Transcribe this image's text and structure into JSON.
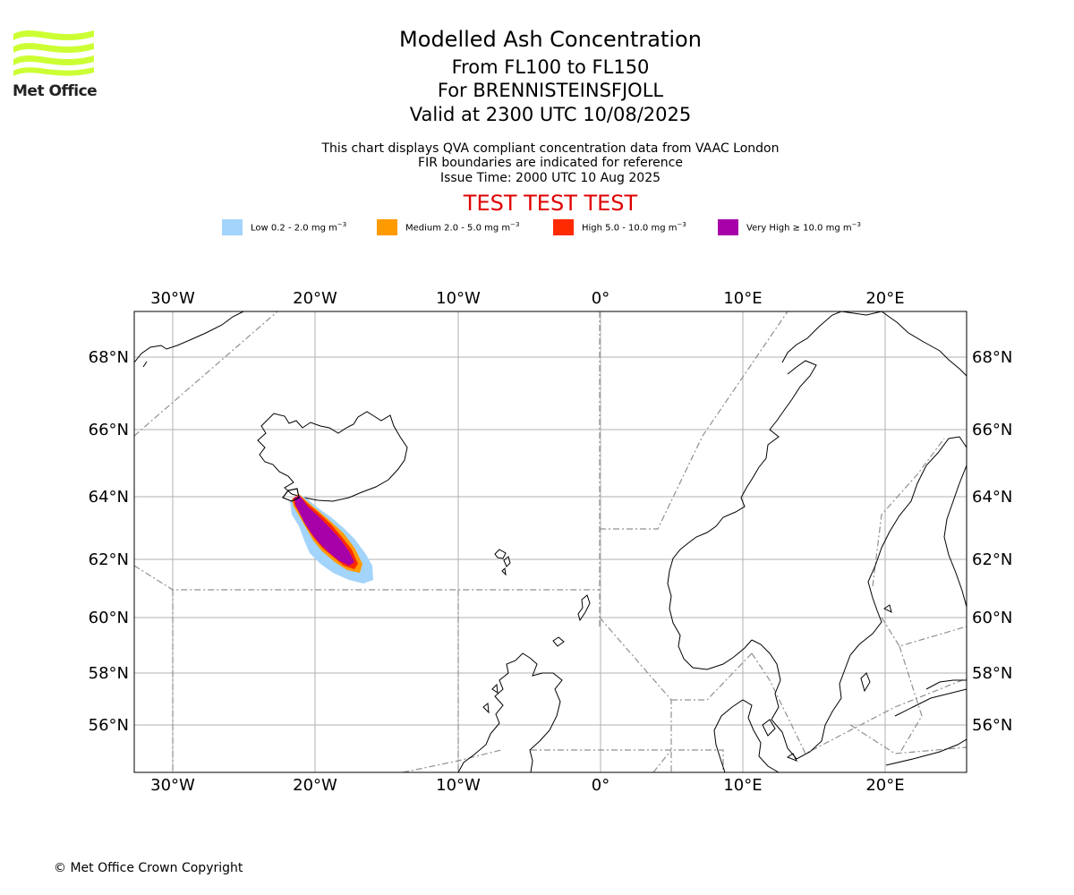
{
  "header": {
    "logo_text": "Met Office",
    "title": "Modelled Ash Concentration",
    "levels": "From FL100 to FL150",
    "volcano": "For BRENNISTEINSFJOLL",
    "valid": "Valid at 2300 UTC 10/08/2025",
    "note1": "This chart displays QVA compliant concentration data from VAAC London",
    "note2": "FIR boundaries are indicated for reference",
    "note3": "Issue Time: 2000 UTC 10 Aug 2025",
    "test_banner": "TEST TEST TEST"
  },
  "legend": [
    {
      "label": "Low 0.2 - 2.0 mg m",
      "color": "#a3d4fb"
    },
    {
      "label": "Medium 2.0 - 5.0 mg m",
      "color": "#ff9a00"
    },
    {
      "label": "High 5.0 - 10.0 mg m",
      "color": "#ff2a00"
    },
    {
      "label": "Very High ≥ 10.0 mg m",
      "color": "#a800a8"
    }
  ],
  "legend_unit_exponent": "−3",
  "map": {
    "lon_ticks": [
      "30°W",
      "20°W",
      "10°W",
      "0°",
      "10°E",
      "20°E"
    ],
    "lat_ticks": [
      "68°N",
      "66°N",
      "64°N",
      "62°N",
      "60°N",
      "58°N",
      "56°N"
    ]
  },
  "footer": {
    "copyright": "© Met Office Crown Copyright"
  },
  "colors": {
    "logo": "#ccff33",
    "grid": "#b0b0b0",
    "fir": "#909090",
    "coast": "#000000"
  }
}
